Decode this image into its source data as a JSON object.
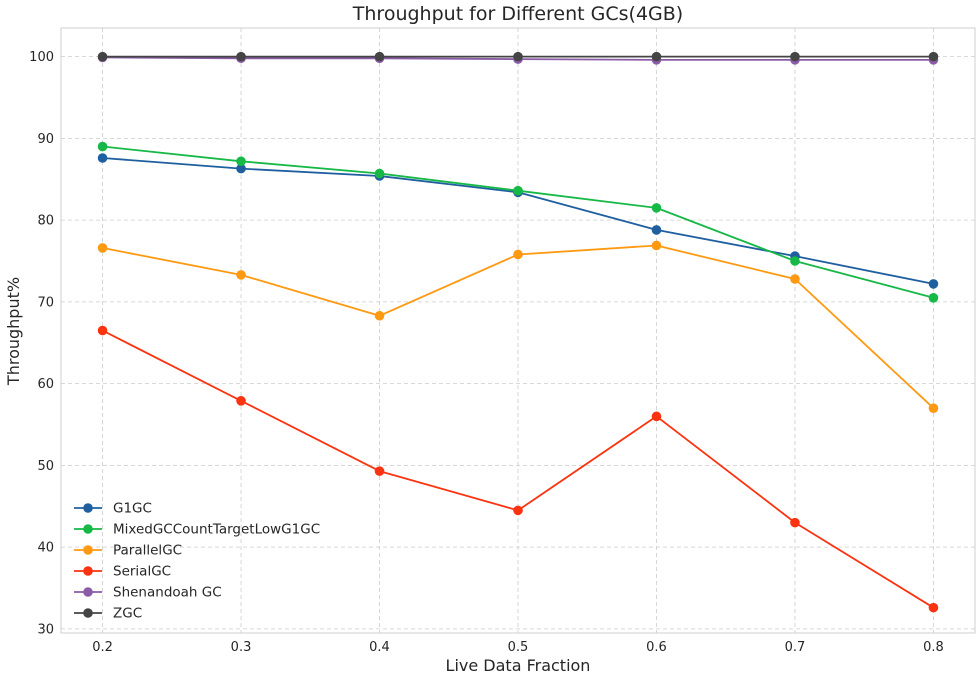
{
  "chart_data": {
    "type": "line",
    "title": "Throughput for Different GCs(4GB)",
    "xlabel": "Live Data Fraction",
    "ylabel": "Throughput%",
    "x": [
      0.2,
      0.3,
      0.4,
      0.5,
      0.6,
      0.7,
      0.8
    ],
    "x_tick_labels": [
      "0.2",
      "0.3",
      "0.4",
      "0.5",
      "0.6",
      "0.7",
      "0.8"
    ],
    "xlim": [
      0.17,
      0.83
    ],
    "ylim": [
      29.5,
      103.5
    ],
    "y_ticks": [
      30,
      40,
      50,
      60,
      70,
      80,
      90,
      100
    ],
    "grid": true,
    "legend_position": "lower-left",
    "series": [
      {
        "name": "G1GC",
        "color": "#1f5fa0",
        "values": [
          87.6,
          86.3,
          85.4,
          83.4,
          78.8,
          75.6,
          72.2
        ]
      },
      {
        "name": "MixedGCCountTargetLowG1GC",
        "color": "#16b846",
        "values": [
          89.0,
          87.2,
          85.7,
          83.6,
          81.5,
          75.0,
          70.5
        ]
      },
      {
        "name": "ParallelGC",
        "color": "#ff9912",
        "values": [
          76.6,
          73.3,
          68.3,
          75.8,
          76.9,
          72.8,
          57.0
        ]
      },
      {
        "name": "SerialGC",
        "color": "#fb3310",
        "values": [
          66.5,
          57.9,
          49.3,
          44.5,
          56.0,
          43.0,
          32.6
        ]
      },
      {
        "name": "Shenandoah GC",
        "color": "#8a5ca6",
        "values": [
          99.9,
          99.8,
          99.8,
          99.7,
          99.6,
          99.6,
          99.6
        ]
      },
      {
        "name": "ZGC",
        "color": "#444444",
        "values": [
          100.0,
          100.0,
          100.0,
          100.0,
          100.0,
          100.0,
          100.0
        ]
      }
    ]
  }
}
